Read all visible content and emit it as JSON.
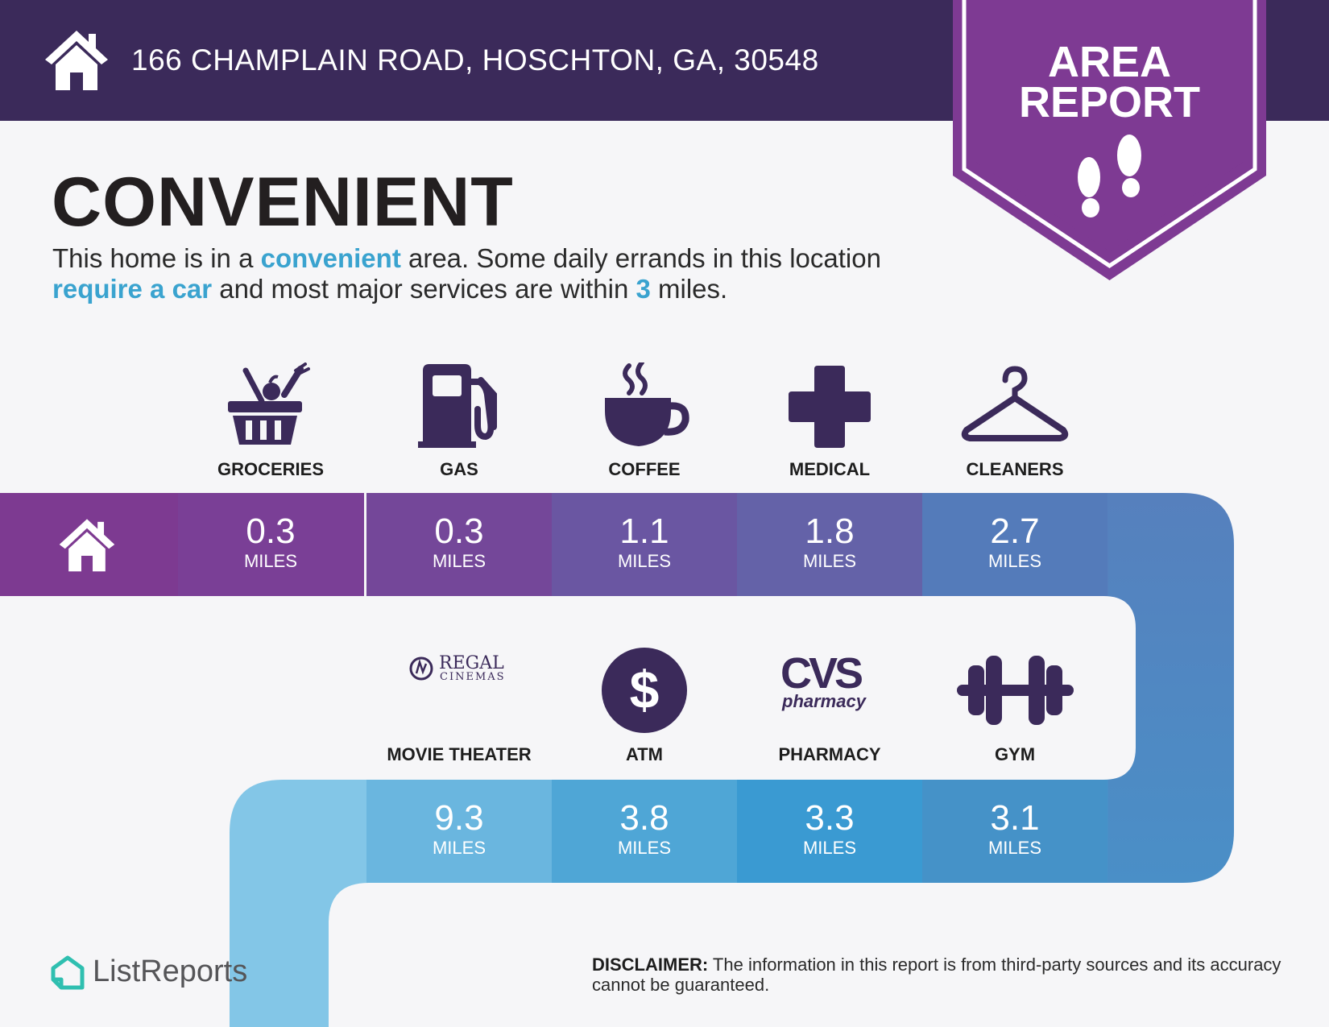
{
  "header": {
    "address": "166 CHAMPLAIN ROAD, HOSCHTON, GA, 30548"
  },
  "badge": {
    "line1": "AREA",
    "line2": "REPORT",
    "icon": "footprints-icon"
  },
  "title": "CONVENIENT",
  "description": {
    "part1": "This home is in a ",
    "hl1": "convenient",
    "part2": " area. Some daily errands in this location ",
    "hl2": "require a car",
    "part3": " and most major services are within ",
    "hl3": "3",
    "part4": " miles."
  },
  "categories_top": [
    {
      "label": "GROCERIES",
      "value": "0.3",
      "unit": "MILES",
      "icon": "grocery-basket-icon",
      "color": "#7a3f96"
    },
    {
      "label": "GAS",
      "value": "0.3",
      "unit": "MILES",
      "icon": "gas-pump-icon",
      "color": "#744799"
    },
    {
      "label": "COFFEE",
      "value": "1.1",
      "unit": "MILES",
      "icon": "coffee-cup-icon",
      "color": "#6a56a2"
    },
    {
      "label": "MEDICAL",
      "value": "1.8",
      "unit": "MILES",
      "icon": "medical-cross-icon",
      "color": "#6462a8"
    },
    {
      "label": "CLEANERS",
      "value": "2.7",
      "unit": "MILES",
      "icon": "hanger-icon",
      "color": "#547bba"
    }
  ],
  "categories_bottom": [
    {
      "label": "MOVIE THEATER",
      "value": "9.3",
      "unit": "MILES",
      "icon": "regal-cinemas-logo",
      "logo_text1": "REGAL",
      "logo_text2": "CINEMAS",
      "color": "#6ab6df"
    },
    {
      "label": "ATM",
      "value": "3.8",
      "unit": "MILES",
      "icon": "dollar-icon",
      "color": "#4fa6d6"
    },
    {
      "label": "PHARMACY",
      "value": "3.3",
      "unit": "MILES",
      "icon": "cvs-pharmacy-logo",
      "logo_text1": "CVS",
      "logo_text2": "pharmacy",
      "color": "#3a9ad2"
    },
    {
      "label": "GYM",
      "value": "3.1",
      "unit": "MILES",
      "icon": "dumbbell-icon",
      "color": "#4592c8"
    }
  ],
  "colors": {
    "header": "#3b2a5a",
    "badge": "#7e3a93",
    "icon": "#3b2a5a",
    "highlight": "#3aa3cf",
    "home_cell": "#7d3a91"
  },
  "footer": {
    "brand": "ListReports",
    "disclaimer_label": "DISCLAIMER:",
    "disclaimer_text": " The information in this report is from third-party sources and its accuracy cannot be guaranteed."
  }
}
